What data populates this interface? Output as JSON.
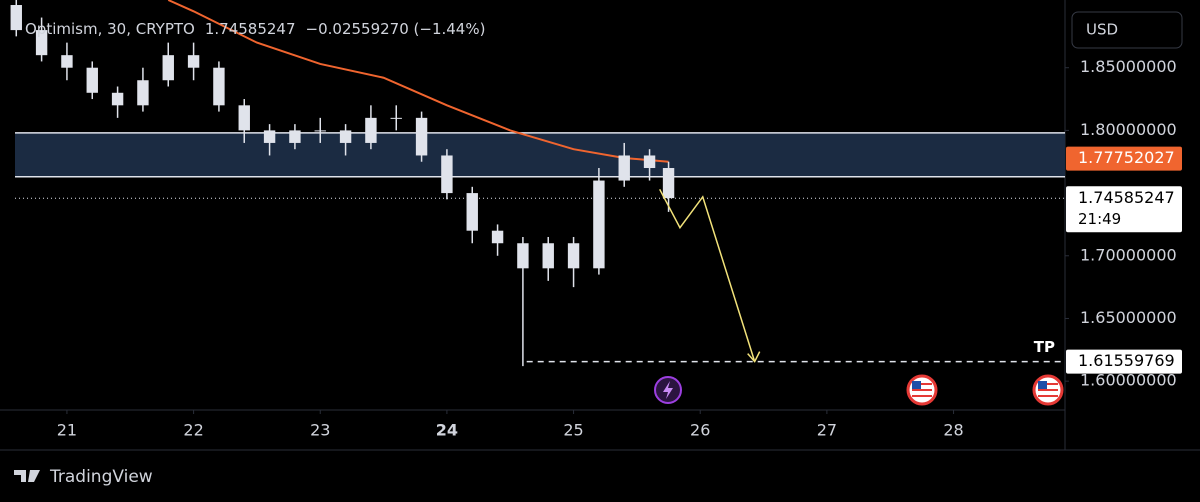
{
  "header": {
    "symbol": "Optimism, 30, CRYPTO",
    "last": "1.74585247",
    "change": "−0.02559270 (−1.44%)"
  },
  "currency_button": "USD",
  "brand": "TradingView",
  "chart_data": {
    "type": "candlestick",
    "x": [
      20.6,
      20.8,
      21.0,
      21.2,
      21.4,
      21.6,
      21.8,
      22.0,
      22.2,
      22.4,
      22.6,
      22.8,
      23.0,
      23.2,
      23.4,
      23.6,
      23.8,
      24.0,
      24.2,
      24.4,
      24.6,
      24.8,
      25.0,
      25.2,
      25.4,
      25.6,
      25.75
    ],
    "open": [
      1.9,
      1.88,
      1.86,
      1.85,
      1.83,
      1.82,
      1.84,
      1.86,
      1.85,
      1.82,
      1.8,
      1.79,
      1.8,
      1.8,
      1.79,
      1.81,
      1.81,
      1.78,
      1.75,
      1.72,
      1.71,
      1.69,
      1.71,
      1.69,
      1.76,
      1.78,
      1.77
    ],
    "high": [
      1.905,
      1.89,
      1.87,
      1.855,
      1.835,
      1.85,
      1.87,
      1.87,
      1.855,
      1.825,
      1.805,
      1.805,
      1.81,
      1.805,
      1.82,
      1.82,
      1.815,
      1.785,
      1.755,
      1.725,
      1.715,
      1.715,
      1.715,
      1.77,
      1.79,
      1.785,
      1.775
    ],
    "low": [
      1.875,
      1.855,
      1.84,
      1.825,
      1.81,
      1.815,
      1.835,
      1.84,
      1.815,
      1.79,
      1.78,
      1.785,
      1.79,
      1.78,
      1.785,
      1.8,
      1.775,
      1.745,
      1.71,
      1.7,
      1.612,
      1.68,
      1.675,
      1.685,
      1.755,
      1.76,
      1.735
    ],
    "close": [
      1.88,
      1.86,
      1.85,
      1.83,
      1.82,
      1.84,
      1.86,
      1.85,
      1.82,
      1.8,
      1.79,
      1.8,
      1.8,
      1.79,
      1.81,
      1.81,
      1.78,
      1.75,
      1.72,
      1.71,
      1.69,
      1.71,
      1.69,
      1.76,
      1.78,
      1.77,
      1.746
    ],
    "color": "#e0e3eb",
    "moving_average": {
      "color": "#f0652f",
      "x": [
        21.8,
        22.0,
        22.5,
        23.0,
        23.5,
        24.0,
        24.5,
        25.0,
        25.4,
        25.75
      ],
      "values": [
        1.904,
        1.895,
        1.87,
        1.853,
        1.842,
        1.82,
        1.8,
        1.785,
        1.778,
        1.775
      ]
    },
    "zone": {
      "top": 1.798,
      "bottom": 1.763,
      "color": "#1b2b42"
    },
    "projection": {
      "color": "#f2e27a",
      "x": [
        25.68,
        25.84,
        26.02,
        26.43
      ],
      "values": [
        1.753,
        1.7224,
        1.747,
        1.6156
      ]
    },
    "target": {
      "label": "TP",
      "start": 24.63,
      "value": 1.61559769
    },
    "last_price": {
      "value": 1.74585247,
      "countdown": "21:49"
    },
    "ma_price": 1.77752027,
    "xlim": [
      20.59,
      28.88
    ],
    "ylim": [
      1.577,
      1.904
    ],
    "xticks": [
      21,
      22,
      23,
      24,
      25,
      26,
      27,
      28
    ],
    "yticks": [
      {
        "value": 1.6,
        "label": "1.60000000"
      },
      {
        "value": 1.65,
        "label": "1.65000000"
      },
      {
        "value": 1.7,
        "label": "1.70000000"
      },
      {
        "value": 1.8,
        "label": "1.80000000"
      },
      {
        "value": 1.85,
        "label": "1.85000000"
      }
    ]
  }
}
